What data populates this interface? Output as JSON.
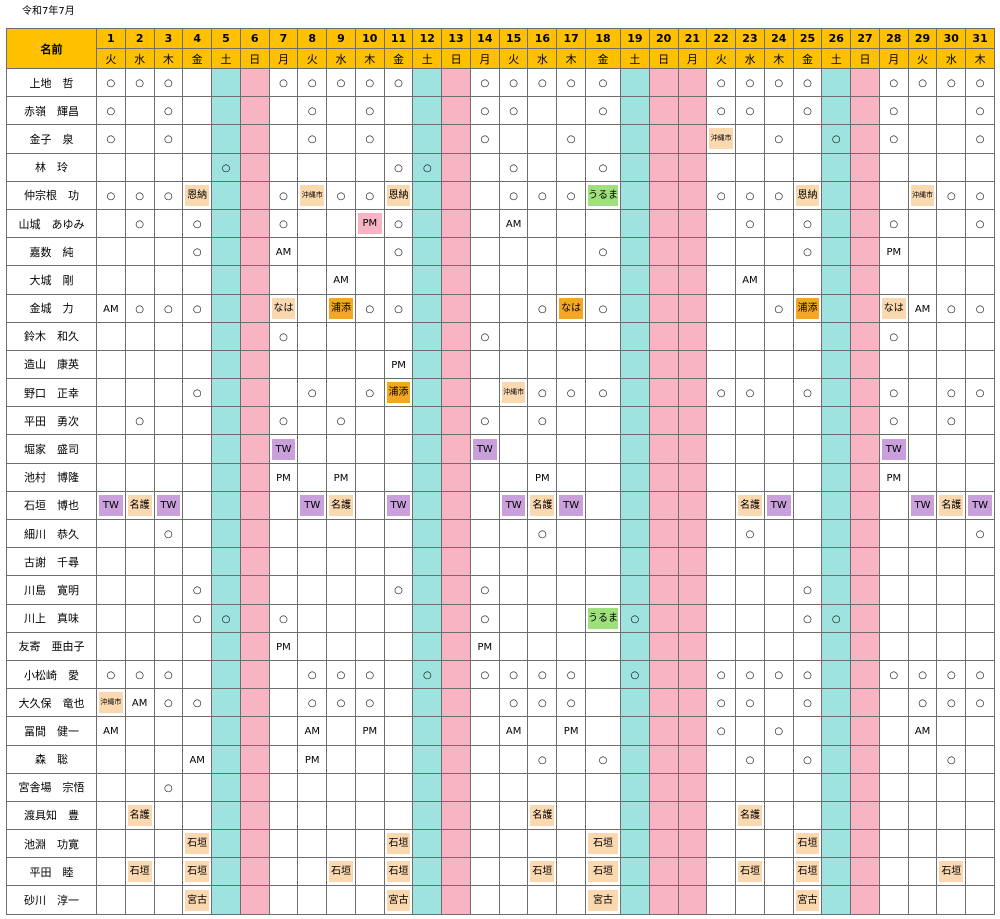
{
  "title": "令和7年7月",
  "name_header": "名前",
  "days": [
    {
      "d": "1",
      "w": "火",
      "t": "w"
    },
    {
      "d": "2",
      "w": "水",
      "t": "w"
    },
    {
      "d": "3",
      "w": "木",
      "t": "w"
    },
    {
      "d": "4",
      "w": "金",
      "t": "w"
    },
    {
      "d": "5",
      "w": "土",
      "t": "sat"
    },
    {
      "d": "6",
      "w": "日",
      "t": "sun"
    },
    {
      "d": "7",
      "w": "月",
      "t": "w"
    },
    {
      "d": "8",
      "w": "火",
      "t": "w"
    },
    {
      "d": "9",
      "w": "水",
      "t": "w"
    },
    {
      "d": "10",
      "w": "木",
      "t": "w"
    },
    {
      "d": "11",
      "w": "金",
      "t": "w"
    },
    {
      "d": "12",
      "w": "土",
      "t": "sat"
    },
    {
      "d": "13",
      "w": "日",
      "t": "sun"
    },
    {
      "d": "14",
      "w": "月",
      "t": "w"
    },
    {
      "d": "15",
      "w": "火",
      "t": "w"
    },
    {
      "d": "16",
      "w": "水",
      "t": "w"
    },
    {
      "d": "17",
      "w": "木",
      "t": "w"
    },
    {
      "d": "18",
      "w": "金",
      "t": "w"
    },
    {
      "d": "19",
      "w": "土",
      "t": "sat"
    },
    {
      "d": "20",
      "w": "日",
      "t": "sun"
    },
    {
      "d": "21",
      "w": "月",
      "t": "sun"
    },
    {
      "d": "22",
      "w": "火",
      "t": "w"
    },
    {
      "d": "23",
      "w": "水",
      "t": "w"
    },
    {
      "d": "24",
      "w": "木",
      "t": "w"
    },
    {
      "d": "25",
      "w": "金",
      "t": "w"
    },
    {
      "d": "26",
      "w": "土",
      "t": "sat"
    },
    {
      "d": "27",
      "w": "日",
      "t": "sun"
    },
    {
      "d": "28",
      "w": "月",
      "t": "w"
    },
    {
      "d": "29",
      "w": "火",
      "t": "w"
    },
    {
      "d": "30",
      "w": "水",
      "t": "w"
    },
    {
      "d": "31",
      "w": "木",
      "t": "w"
    }
  ],
  "colors": {
    "header_name": "#92b0d8",
    "header_day": "#ffc000",
    "saturday": "#9fe3e0",
    "sunday": "#f8b4c2",
    "orange": "#f5a623",
    "peach": "#fbd9b0",
    "purple": "#c9a0dc",
    "green": "#9ee07c"
  },
  "rows": [
    {
      "name": "上地　哲",
      "cells": [
        "○",
        "○",
        "○",
        "",
        "",
        "",
        "○",
        "○",
        "○",
        "○",
        "○",
        "",
        "",
        "○",
        "○",
        "○",
        "○",
        "○",
        "",
        "",
        "",
        "○",
        "○",
        "○",
        "○",
        "",
        "",
        "○",
        "○",
        "○",
        "○"
      ]
    },
    {
      "name": "赤嶺　輝昌",
      "cells": [
        "○",
        "",
        "○",
        "",
        "",
        "",
        "",
        "○",
        "",
        "○",
        "",
        "",
        "",
        "○",
        "○",
        "",
        "",
        "○",
        "",
        "",
        "",
        "○",
        "○",
        "",
        "○",
        "",
        "",
        "○",
        "",
        "",
        "○"
      ]
    },
    {
      "name": "金子　泉",
      "cells": [
        "○",
        "",
        "○",
        "",
        "",
        "",
        "",
        "○",
        "",
        "○",
        "",
        "",
        "",
        "○",
        "",
        "",
        "○",
        "",
        "",
        "",
        "",
        "沖縄市",
        "",
        "○",
        "",
        "○",
        "",
        "○",
        "",
        "",
        "○"
      ]
    },
    {
      "name": "林　玲",
      "cells": [
        "",
        "",
        "",
        "",
        "○",
        "",
        "",
        "",
        "",
        "",
        "○",
        "○",
        "",
        "",
        "○",
        "",
        "",
        "○",
        "",
        "",
        "",
        "",
        "",
        "",
        "",
        "",
        "",
        "",
        "",
        "",
        ""
      ]
    },
    {
      "name": "仲宗根　功",
      "cells": [
        "○",
        "○",
        "○",
        "恩納",
        "",
        "",
        "○",
        "沖縄市",
        "○",
        "○",
        "恩納",
        "",
        "",
        "",
        "○",
        "○",
        "○",
        "うるま",
        "",
        "",
        "",
        "○",
        "○",
        "○",
        "恩納",
        "",
        "",
        "",
        "沖縄市",
        "○",
        "○"
      ]
    },
    {
      "name": "山城　あゆみ",
      "cells": [
        "",
        "○",
        "",
        "○",
        "",
        "",
        "○",
        "",
        "",
        "PM",
        "○",
        "",
        "",
        "",
        "AM",
        "",
        "",
        "",
        "",
        "",
        "",
        "",
        "○",
        "",
        "○",
        "",
        "",
        "○",
        "",
        "",
        "○"
      ]
    },
    {
      "name": "嘉数　純",
      "cells": [
        "",
        "",
        "",
        "○",
        "",
        "",
        "AM",
        "",
        "",
        "",
        "○",
        "",
        "",
        "",
        "",
        "",
        "",
        "○",
        "",
        "",
        "",
        "",
        "",
        "",
        "○",
        "",
        "",
        "PM",
        "",
        "",
        ""
      ]
    },
    {
      "name": "大城　剛",
      "cells": [
        "",
        "",
        "",
        "",
        "",
        "",
        "",
        "",
        "AM",
        "",
        "",
        "",
        "",
        "",
        "",
        "",
        "",
        "",
        "",
        "",
        "",
        "",
        "AM",
        "",
        "",
        "",
        "",
        "",
        "",
        "",
        ""
      ]
    },
    {
      "name": "金城　力",
      "cells": [
        "AM",
        "○",
        "○",
        "○",
        "",
        "",
        "なは",
        "",
        "浦添",
        "○",
        "○",
        "",
        "",
        "",
        "",
        "○",
        "なは",
        "○",
        "",
        "",
        "",
        "",
        "",
        "○",
        "浦添",
        "",
        "",
        "なは",
        "AM",
        "○",
        "○"
      ]
    },
    {
      "name": "鈴木　和久",
      "cells": [
        "",
        "",
        "",
        "",
        "",
        "",
        "○",
        "",
        "",
        "",
        "",
        "",
        "",
        "○",
        "",
        "",
        "",
        "",
        "",
        "",
        "",
        "",
        "",
        "",
        "",
        "",
        "",
        "○",
        "",
        "",
        ""
      ]
    },
    {
      "name": "造山　康英",
      "cells": [
        "",
        "",
        "",
        "",
        "",
        "",
        "",
        "",
        "",
        "",
        "PM",
        "",
        "",
        "",
        "",
        "",
        "",
        "",
        "",
        "",
        "",
        "",
        "",
        "",
        "",
        "",
        "",
        "",
        "",
        "",
        ""
      ]
    },
    {
      "name": "野口　正幸",
      "cells": [
        "",
        "",
        "",
        "○",
        "",
        "",
        "",
        "○",
        "",
        "○",
        "浦添",
        "",
        "",
        "",
        "沖縄市",
        "○",
        "○",
        "○",
        "",
        "",
        "",
        "○",
        "○",
        "",
        "○",
        "",
        "",
        "○",
        "",
        "○",
        "○"
      ]
    },
    {
      "name": "平田　勇次",
      "cells": [
        "",
        "○",
        "",
        "",
        "",
        "",
        "○",
        "",
        "○",
        "",
        "",
        "",
        "",
        "○",
        "",
        "○",
        "",
        "",
        "",
        "",
        "",
        "",
        "",
        "",
        "",
        "",
        "",
        "○",
        "",
        "○",
        ""
      ]
    },
    {
      "name": "堀家　盛司",
      "cells": [
        "",
        "",
        "",
        "",
        "",
        "",
        "TW",
        "",
        "",
        "",
        "",
        "",
        "",
        "TW",
        "",
        "",
        "",
        "",
        "",
        "",
        "",
        "",
        "",
        "",
        "",
        "",
        "",
        "TW",
        "",
        "",
        ""
      ]
    },
    {
      "name": "池村　博隆",
      "cells": [
        "",
        "",
        "",
        "",
        "",
        "",
        "PM",
        "",
        "PM",
        "",
        "",
        "",
        "",
        "",
        "",
        "PM",
        "",
        "",
        "",
        "",
        "",
        "",
        "",
        "",
        "",
        "",
        "",
        "PM",
        "",
        "",
        ""
      ]
    },
    {
      "name": "石垣　博也",
      "cells": [
        "TW",
        "名護",
        "TW",
        "",
        "",
        "",
        "",
        "TW",
        "名護",
        "",
        "TW",
        "",
        "",
        "",
        "TW",
        "名護",
        "TW",
        "",
        "",
        "",
        "",
        "",
        "名護",
        "TW",
        "",
        "",
        "",
        "",
        "TW",
        "名護",
        "TW"
      ]
    },
    {
      "name": "細川　恭久",
      "cells": [
        "",
        "",
        "○",
        "",
        "",
        "",
        "",
        "",
        "",
        "",
        "",
        "",
        "",
        "",
        "",
        "○",
        "",
        "",
        "",
        "",
        "",
        "",
        "○",
        "",
        "",
        "",
        "",
        "",
        "",
        "",
        "○"
      ]
    },
    {
      "name": "古謝　千尋",
      "cells": [
        "",
        "",
        "",
        "",
        "",
        "",
        "",
        "",
        "",
        "",
        "",
        "",
        "",
        "",
        "",
        "",
        "",
        "",
        "",
        "",
        "",
        "",
        "",
        "",
        "",
        "",
        "",
        "",
        "",
        "",
        ""
      ]
    },
    {
      "name": "川島　寛明",
      "cells": [
        "",
        "",
        "",
        "○",
        "",
        "",
        "",
        "",
        "",
        "",
        "○",
        "",
        "",
        "○",
        "",
        "",
        "",
        "",
        "",
        "",
        "",
        "",
        "",
        "",
        "○",
        "",
        "",
        "",
        "",
        "",
        ""
      ]
    },
    {
      "name": "川上　真味",
      "cells": [
        "",
        "",
        "",
        "○",
        "○",
        "",
        "○",
        "",
        "",
        "",
        "",
        "",
        "",
        "○",
        "",
        "",
        "",
        "うるま",
        "○",
        "",
        "",
        "",
        "",
        "",
        "○",
        "○",
        "",
        "",
        "",
        "",
        ""
      ]
    },
    {
      "name": "友寄　亜由子",
      "cells": [
        "",
        "",
        "",
        "",
        "",
        "",
        "PM",
        "",
        "",
        "",
        "",
        "",
        "",
        "PM",
        "",
        "",
        "",
        "",
        "",
        "",
        "",
        "",
        "",
        "",
        "",
        "",
        "",
        "",
        "",
        "",
        ""
      ]
    },
    {
      "name": "小松崎　愛",
      "cells": [
        "○",
        "○",
        "○",
        "",
        "",
        "",
        "",
        "○",
        "○",
        "○",
        "",
        "○",
        "",
        "○",
        "○",
        "○",
        "○",
        "",
        "○",
        "",
        "",
        "○",
        "○",
        "○",
        "○",
        "",
        "",
        "○",
        "○",
        "○",
        "○"
      ]
    },
    {
      "name": "大久保　竜也",
      "cells": [
        "沖縄市",
        "AM",
        "○",
        "○",
        "",
        "",
        "",
        "○",
        "○",
        "○",
        "",
        "",
        "",
        "",
        "○",
        "○",
        "○",
        "",
        "",
        "",
        "",
        "○",
        "○",
        "",
        "○",
        "",
        "",
        "",
        "○",
        "○",
        "○"
      ]
    },
    {
      "name": "冨間　健一",
      "cells": [
        "AM",
        "",
        "",
        "",
        "",
        "",
        "",
        "AM",
        "",
        "PM",
        "",
        "",
        "",
        "",
        "AM",
        "",
        "PM",
        "",
        "",
        "",
        "",
        "○",
        "",
        "○",
        "",
        "",
        "",
        "",
        "AM",
        "",
        ""
      ]
    },
    {
      "name": "森　聡",
      "cells": [
        "",
        "",
        "",
        "AM",
        "",
        "",
        "",
        "PM",
        "",
        "",
        "",
        "",
        "",
        "",
        "",
        "○",
        "",
        "○",
        "",
        "",
        "",
        "",
        "○",
        "",
        "○",
        "",
        "",
        "",
        "",
        "○",
        ""
      ]
    },
    {
      "name": "宮舎場　宗悟",
      "cells": [
        "",
        "",
        "○",
        "",
        "",
        "",
        "",
        "",
        "",
        "",
        "",
        "",
        "",
        "",
        "",
        "",
        "",
        "",
        "",
        "",
        "",
        "",
        "",
        "",
        "",
        "",
        "",
        "",
        "",
        "",
        ""
      ]
    },
    {
      "name": "渡具知　豊",
      "cells": [
        "",
        "名護",
        "",
        "",
        "",
        "",
        "",
        "",
        "",
        "",
        "",
        "",
        "",
        "",
        "",
        "名護",
        "",
        "",
        "",
        "",
        "",
        "",
        "名護",
        "",
        "",
        "",
        "",
        "",
        "",
        "",
        ""
      ]
    },
    {
      "name": "池淵　功寛",
      "cells": [
        "",
        "",
        "",
        "石垣",
        "",
        "",
        "",
        "",
        "",
        "",
        "石垣",
        "",
        "",
        "",
        "",
        "",
        "",
        "石垣",
        "",
        "",
        "",
        "",
        "",
        "",
        "石垣",
        "",
        "",
        "",
        "",
        "",
        ""
      ]
    },
    {
      "name": "平田　睦",
      "cells": [
        "",
        "石垣",
        "",
        "石垣",
        "",
        "",
        "",
        "",
        "石垣",
        "",
        "石垣",
        "",
        "",
        "",
        "",
        "石垣",
        "",
        "石垣",
        "",
        "",
        "",
        "",
        "石垣",
        "",
        "石垣",
        "",
        "",
        "",
        "",
        "石垣",
        ""
      ]
    },
    {
      "name": "砂川　淳一",
      "cells": [
        "",
        "",
        "",
        "宮古",
        "",
        "",
        "",
        "",
        "",
        "",
        "宮古",
        "",
        "",
        "",
        "",
        "",
        "",
        "宮古",
        "",
        "",
        "",
        "",
        "",
        "",
        "宮古",
        "",
        "",
        "",
        "",
        "",
        ""
      ]
    }
  ]
}
